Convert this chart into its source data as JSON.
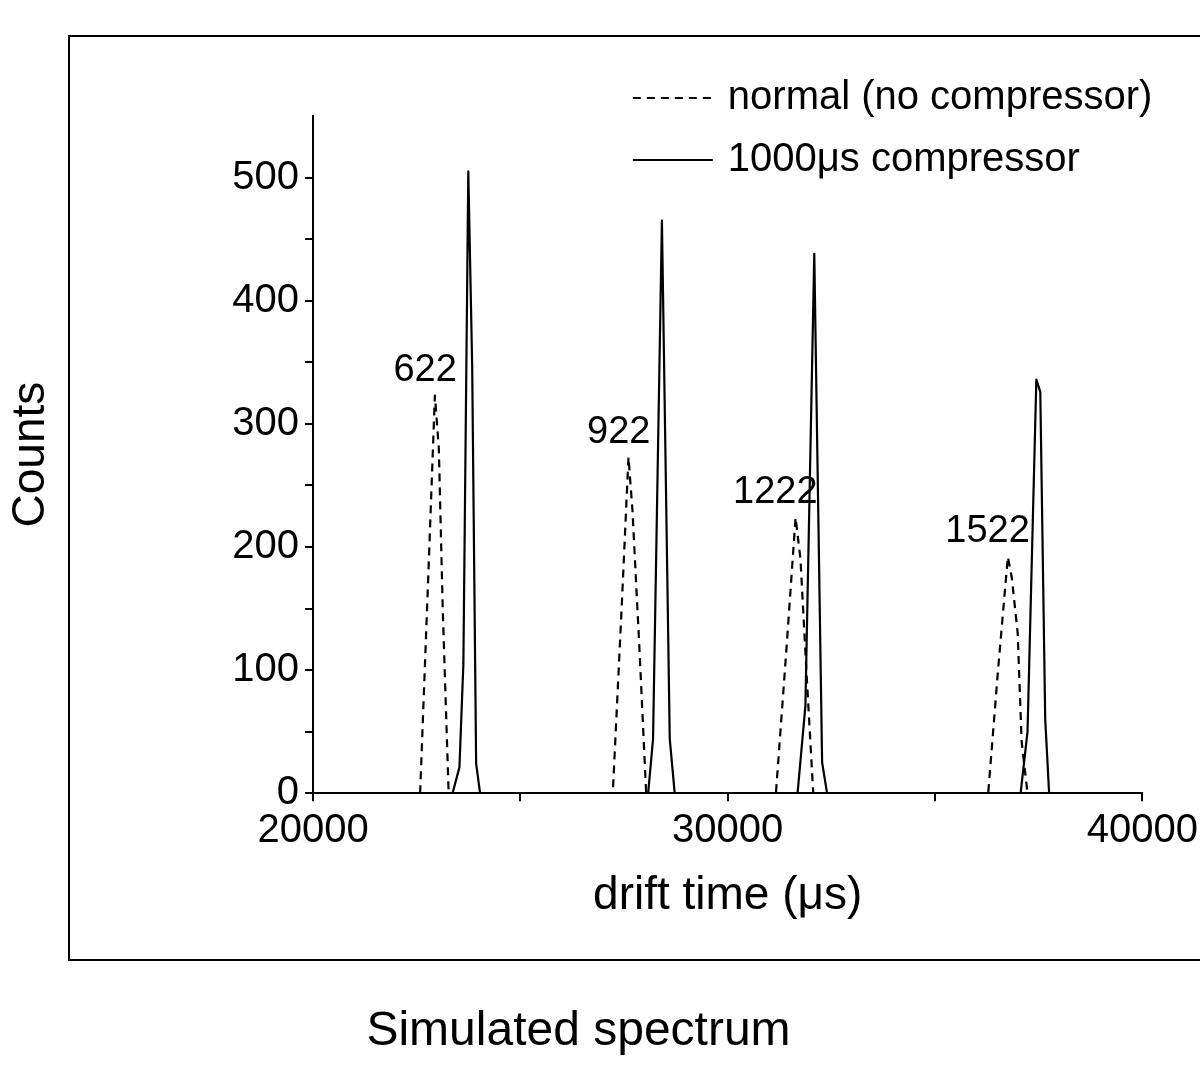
{
  "chart_data": {
    "type": "line",
    "title": "Simulated spectrum",
    "xlabel": "drift time (μs)",
    "ylabel": "Counts",
    "xlim": [
      20000,
      40000
    ],
    "xticks": [
      20000,
      {
        "value": 25000,
        "label": null
      },
      30000,
      {
        "value": 35000,
        "label": null
      },
      40000
    ],
    "ylim": [
      0,
      550
    ],
    "yticks": [
      0,
      {
        "value": 50,
        "label": null
      },
      100,
      {
        "value": 150,
        "label": null
      },
      200,
      {
        "value": 250,
        "label": null
      },
      300,
      {
        "value": 350,
        "label": null
      },
      400,
      {
        "value": 450,
        "label": null
      },
      500
    ],
    "grid": false,
    "legend": "top right",
    "marker": "none",
    "series": [
      {
        "name": "normal (no compressor)",
        "color": "#000000",
        "line_style": "dashed",
        "x": [
          22583,
          22773,
          22939,
          23034,
          23128,
          23271,
          27229,
          27442,
          27608,
          27703,
          27868,
          28034,
          31163,
          31423,
          31637,
          31755,
          31897,
          32063,
          36282,
          36519,
          36756,
          36851,
          36993,
          37088,
          37230
        ],
        "values": [
          0,
          170,
          323,
          280,
          150,
          0,
          0,
          150,
          273,
          230,
          120,
          0,
          0,
          120,
          224,
          190,
          100,
          0,
          0,
          100,
          192,
          175,
          130,
          42,
          0
        ]
      },
      {
        "name": "1000μs compressor",
        "color": "#000000",
        "line_style": "solid",
        "x": [
          23365,
          23531,
          23626,
          23745,
          23839,
          23934,
          24029,
          28082,
          28200,
          28414,
          28603,
          28722,
          31685,
          31874,
          32088,
          32277,
          32396,
          37064,
          37230,
          37443,
          37538,
          37657,
          37751
        ],
        "values": [
          0,
          21,
          105,
          505,
          346,
          24,
          0,
          0,
          44,
          465,
          44,
          0,
          0,
          71,
          438,
          25,
          0,
          0,
          50,
          336,
          326,
          60,
          0
        ]
      }
    ],
    "annotations": [
      {
        "text": "622",
        "x": 22939,
        "y": 323
      },
      {
        "text": "922",
        "x": 27608,
        "y": 273
      },
      {
        "text": "1222",
        "x": 31637,
        "y": 224
      },
      {
        "text": "1522",
        "x": 36756,
        "y": 192
      }
    ]
  }
}
